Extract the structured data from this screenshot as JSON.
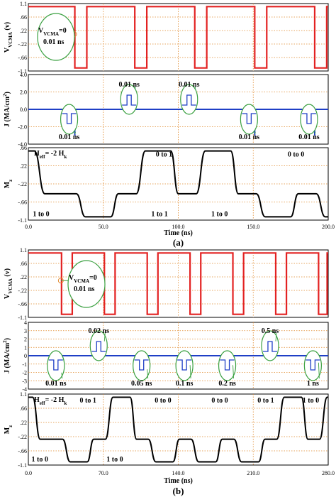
{
  "figures": [
    {
      "caption": "(a)",
      "xlabel": "Time (ns)",
      "xticks": [
        "0.0",
        "50.0",
        "100.0",
        "150.0",
        "200.0"
      ],
      "xmax": 200,
      "voltage": {
        "ylabel": "V",
        "ylabel_sub": "VCMA",
        "ylabel_unit": "(v)",
        "yticks": [
          "1.1",
          ".66",
          ".22",
          "-.22",
          "-.66",
          "-1.1"
        ],
        "ylim": [
          -1.1,
          1.1
        ],
        "high": 1.0,
        "low": -1.0,
        "pulses": [
          [
            31,
            39
          ],
          [
            71,
            79
          ],
          [
            111,
            119
          ],
          [
            151,
            159
          ],
          [
            191,
            199
          ]
        ],
        "annotation": {
          "label": "V",
          "sub": "VCMA",
          "rest": "=0",
          "time": "0.01 ns"
        }
      },
      "current": {
        "ylabel": "J (MA/cm",
        "ylabel_sup": "2",
        "ylabel_end": ")",
        "yticks": [
          "4.0",
          "2.0",
          "0.0",
          "-2.0",
          "-4.0"
        ],
        "ylim": [
          -4,
          4
        ],
        "spikes": [
          {
            "t": 31,
            "amp": -3,
            "label": "0.01 ns"
          },
          {
            "t": 71,
            "amp": 2.5,
            "label": "0.01 ns"
          },
          {
            "t": 111,
            "amp": 2.5,
            "label": "0.01 ns"
          },
          {
            "t": 151,
            "amp": -3,
            "label": "0.01 ns"
          },
          {
            "t": 191,
            "amp": -3,
            "label": "0.01 ns"
          }
        ]
      },
      "magnet": {
        "ylabel": "M",
        "ylabel_sub": "z",
        "yticks": [
          ".66",
          ".22",
          "-.22",
          "-.66",
          "-1.1"
        ],
        "ylim": [
          -1.1,
          1.1
        ],
        "heff": {
          "main": "H",
          "sub": "eff",
          "rest": "= -2 H",
          "sub2": "k"
        },
        "states": [
          {
            "t": 0,
            "v": 1
          },
          {
            "t": 4,
            "v": 1
          },
          {
            "t": 11,
            "v": -0.3
          },
          {
            "t": 32,
            "v": -0.3
          },
          {
            "t": 38,
            "v": -1
          },
          {
            "t": 55,
            "v": -1
          },
          {
            "t": 60,
            "v": -0.3
          },
          {
            "t": 72,
            "v": -0.3
          },
          {
            "t": 78,
            "v": 1
          },
          {
            "t": 95,
            "v": 1
          },
          {
            "t": 100,
            "v": -0.3
          },
          {
            "t": 112,
            "v": -0.3
          },
          {
            "t": 118,
            "v": 1
          },
          {
            "t": 135,
            "v": 1
          },
          {
            "t": 140,
            "v": -0.3
          },
          {
            "t": 152,
            "v": -0.3
          },
          {
            "t": 158,
            "v": -1
          },
          {
            "t": 175,
            "v": -1
          },
          {
            "t": 180,
            "v": -0.3
          },
          {
            "t": 192,
            "v": -0.3
          },
          {
            "t": 198,
            "v": -1
          },
          {
            "t": 200,
            "v": -1
          }
        ],
        "labels": [
          {
            "text": "0 to 1",
            "t": 85,
            "v": 0.92
          },
          {
            "text": "0 to 0",
            "t": 173,
            "v": 0.92
          },
          {
            "text": "1 to 0",
            "t": 3,
            "v": -0.9
          },
          {
            "text": "1 to 1",
            "t": 82,
            "v": -0.9
          },
          {
            "text": "1 to 0",
            "t": 122,
            "v": -0.9
          }
        ]
      }
    },
    {
      "caption": "(b)",
      "xlabel": "Time (ns)",
      "xticks": [
        "0.0",
        "70.0",
        "140.0",
        "210.0",
        "280.0"
      ],
      "xmax": 280,
      "voltage": {
        "ylabel": "V",
        "ylabel_sub": "VCMA",
        "ylabel_unit": "(v)",
        "yticks": [
          "1.1",
          ".66",
          ".22",
          "-.22",
          "-.66",
          "-1.1"
        ],
        "ylim": [
          -1.1,
          1.1
        ],
        "high": 1.0,
        "low": -1.0,
        "pulses": [
          [
            31,
            41
          ],
          [
            71,
            81
          ],
          [
            111,
            121
          ],
          [
            151,
            161
          ],
          [
            191,
            201
          ],
          [
            231,
            241
          ],
          [
            271,
            279
          ]
        ],
        "annotation": {
          "label": "V",
          "sub": "VCMA",
          "rest": "=0",
          "time": "0.01 ns"
        }
      },
      "current": {
        "ylabel": "J (MA/cm",
        "ylabel_sup": "2",
        "ylabel_end": ")",
        "yticks": [
          "4",
          "3",
          "2",
          "1",
          "0",
          "-1",
          "-2",
          "-3",
          "-4"
        ],
        "ylim": [
          -4,
          4
        ],
        "spikes": [
          {
            "t": 31,
            "amp": -2.2,
            "label": "0.01 ns"
          },
          {
            "t": 71,
            "amp": 1.9,
            "label": "0.02 ns"
          },
          {
            "t": 111,
            "amp": -1.8,
            "label": "0.05 ns"
          },
          {
            "t": 151,
            "amp": -1.3,
            "label": "0.1 ns"
          },
          {
            "t": 191,
            "amp": -1.3,
            "label": "0.2 ns"
          },
          {
            "t": 231,
            "amp": 1.9,
            "label": "0.5 ns"
          },
          {
            "t": 271,
            "amp": -1.0,
            "label": "1 ns"
          }
        ]
      },
      "magnet": {
        "ylabel": "M",
        "ylabel_sub": "z",
        "yticks": [
          "1.1",
          ".66",
          ".22",
          "-.22",
          "-.66",
          "-1.1"
        ],
        "ylim": [
          -1.1,
          1.1
        ],
        "heff": {
          "main": "H",
          "sub": "eff",
          "rest": "= -2 H",
          "sub2": "k"
        },
        "states": [
          {
            "t": 0,
            "v": 1
          },
          {
            "t": 4,
            "v": 1
          },
          {
            "t": 11,
            "v": -0.3
          },
          {
            "t": 32,
            "v": -0.3
          },
          {
            "t": 39,
            "v": -1
          },
          {
            "t": 55,
            "v": -1
          },
          {
            "t": 61,
            "v": -0.3
          },
          {
            "t": 72,
            "v": -0.3
          },
          {
            "t": 79,
            "v": 1
          },
          {
            "t": 95,
            "v": 1
          },
          {
            "t": 101,
            "v": -0.3
          },
          {
            "t": 112,
            "v": -0.3
          },
          {
            "t": 119,
            "v": -1
          },
          {
            "t": 135,
            "v": -1
          },
          {
            "t": 141,
            "v": -0.3
          },
          {
            "t": 152,
            "v": -0.3
          },
          {
            "t": 159,
            "v": -1
          },
          {
            "t": 175,
            "v": -1
          },
          {
            "t": 181,
            "v": -0.3
          },
          {
            "t": 192,
            "v": -0.3
          },
          {
            "t": 199,
            "v": -1
          },
          {
            "t": 215,
            "v": -1
          },
          {
            "t": 221,
            "v": -0.3
          },
          {
            "t": 232,
            "v": -0.3
          },
          {
            "t": 239,
            "v": 1
          },
          {
            "t": 255,
            "v": 1
          },
          {
            "t": 261,
            "v": -0.3
          },
          {
            "t": 272,
            "v": -0.3
          },
          {
            "t": 279,
            "v": 1
          },
          {
            "t": 280,
            "v": 1
          }
        ],
        "labels": [
          {
            "text": "0 to 1",
            "t": 48,
            "v": 0.92
          },
          {
            "text": "0 to 0",
            "t": 118,
            "v": 0.92
          },
          {
            "text": "0 to 0",
            "t": 171,
            "v": 0.92
          },
          {
            "text": "0 to 1",
            "t": 214,
            "v": 0.92
          },
          {
            "text": "1 to 0",
            "t": 256,
            "v": 0.92
          },
          {
            "text": "1 to 0",
            "t": 3,
            "v": -0.9
          },
          {
            "text": "1 to 0",
            "t": 73,
            "v": -0.9
          }
        ]
      }
    }
  ],
  "colors": {
    "voltage": "#e32222",
    "current": "#1f3fc6",
    "magnet": "#000000",
    "grid": "#e08a2e",
    "ellipse": "#3aa040",
    "ellipse_fill": "#ffffff"
  },
  "chart_data": [
    {
      "type": "line",
      "title": "",
      "xlabel": "Time (ns)",
      "ylabel": "VCMA (v)",
      "xlim": [
        0,
        200
      ],
      "ylim": [
        -1.1,
        1.1
      ],
      "grid": true,
      "series": [
        {
          "name": "",
          "x": [
            0,
            31,
            31,
            39,
            39,
            71,
            71,
            79,
            79,
            111,
            111,
            119,
            119,
            151,
            151,
            159,
            159,
            191,
            191,
            199,
            199,
            200
          ],
          "y": [
            1,
            1,
            -1,
            -1,
            1,
            1,
            -1,
            -1,
            1,
            1,
            -1,
            -1,
            1,
            1,
            -1,
            -1,
            1,
            1,
            -1,
            -1,
            1,
            1
          ]
        }
      ]
    },
    {
      "type": "line",
      "title": "",
      "xlabel": "Time (ns)",
      "ylabel": "J (MA/cm2)",
      "xlim": [
        0,
        200
      ],
      "ylim": [
        -4,
        4
      ],
      "grid": true,
      "series": [
        {
          "name": "",
          "x": [
            31,
            71,
            111,
            151,
            191
          ],
          "y": [
            -3,
            2.5,
            2.5,
            -3,
            -3
          ]
        }
      ]
    },
    {
      "type": "line",
      "title": "",
      "xlabel": "Time (ns)",
      "ylabel": "Mz",
      "xlim": [
        0,
        200
      ],
      "ylim": [
        -1.1,
        1.1
      ],
      "grid": true,
      "series": [
        {
          "name": "",
          "x": [
            0,
            11,
            38,
            60,
            78,
            100,
            118,
            140,
            158,
            180,
            198,
            200
          ],
          "y": [
            1,
            -0.3,
            -1,
            -0.3,
            1,
            -0.3,
            1,
            -0.3,
            -1,
            -0.3,
            -1,
            -1
          ]
        }
      ]
    },
    {
      "type": "line",
      "title": "",
      "xlabel": "Time (ns)",
      "ylabel": "VCMA (v)",
      "xlim": [
        0,
        280
      ],
      "ylim": [
        -1.1,
        1.1
      ],
      "grid": true,
      "series": [
        {
          "name": "",
          "x": [
            0,
            31,
            31,
            41,
            41,
            71,
            71,
            81,
            81,
            111,
            111,
            121,
            121,
            151,
            151,
            161,
            161,
            191,
            191,
            201,
            201,
            231,
            231,
            241,
            241,
            271,
            271,
            279
          ],
          "y": [
            1,
            1,
            -1,
            -1,
            1,
            1,
            -1,
            -1,
            1,
            1,
            -1,
            -1,
            1,
            1,
            -1,
            -1,
            1,
            1,
            -1,
            -1,
            1,
            1,
            -1,
            -1,
            1,
            1,
            -1,
            -1
          ]
        }
      ]
    },
    {
      "type": "line",
      "title": "",
      "xlabel": "Time (ns)",
      "ylabel": "J (MA/cm2)",
      "xlim": [
        0,
        280
      ],
      "ylim": [
        -4,
        4
      ],
      "grid": true,
      "series": [
        {
          "name": "",
          "x": [
            31,
            71,
            111,
            151,
            191,
            231,
            271
          ],
          "y": [
            -2.2,
            1.9,
            -1.8,
            -1.3,
            -1.3,
            1.9,
            -1.0
          ]
        }
      ]
    },
    {
      "type": "line",
      "title": "",
      "xlabel": "Time (ns)",
      "ylabel": "Mz",
      "xlim": [
        0,
        280
      ],
      "ylim": [
        -1.1,
        1.1
      ],
      "grid": true,
      "series": [
        {
          "name": "",
          "x": [
            0,
            11,
            39,
            61,
            79,
            101,
            119,
            141,
            159,
            181,
            199,
            221,
            239,
            261,
            279,
            280
          ],
          "y": [
            1,
            -0.3,
            -1,
            -0.3,
            1,
            -0.3,
            -1,
            -0.3,
            -1,
            -0.3,
            -1,
            -0.3,
            1,
            -0.3,
            1,
            1
          ]
        }
      ]
    }
  ]
}
